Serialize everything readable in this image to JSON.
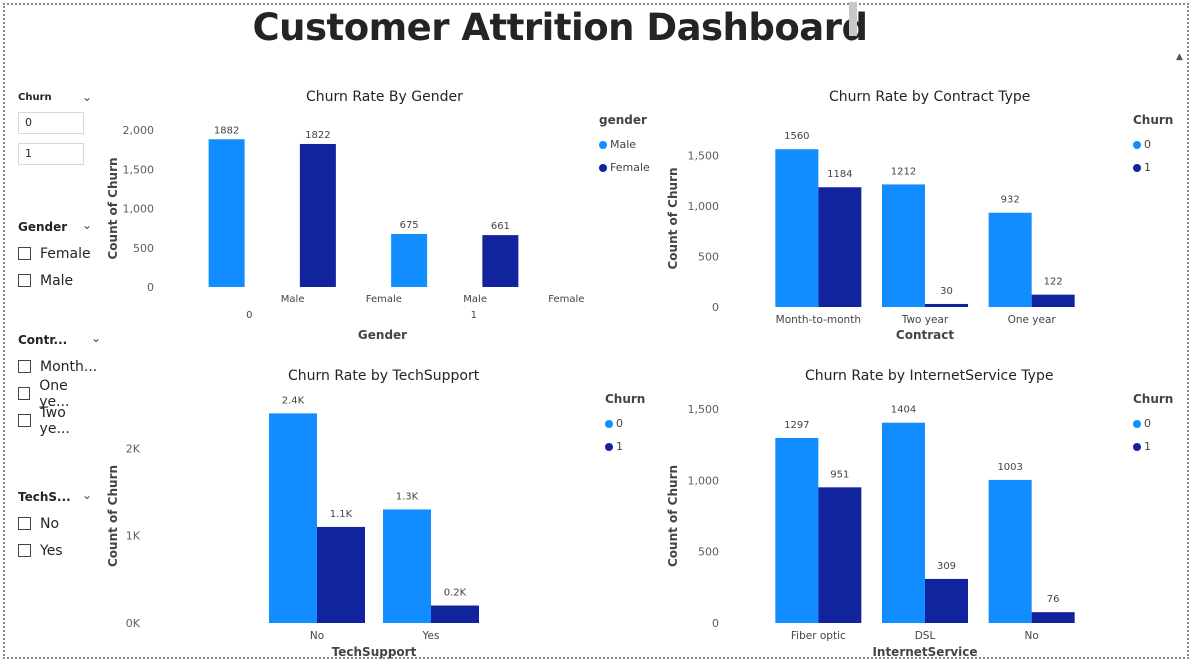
{
  "header": {
    "title": "Customer Attrition Dashboard"
  },
  "colors": {
    "primary": "#118DFF",
    "secondary": "#12239E"
  },
  "slicers": {
    "churn": {
      "title": "Churn",
      "items": [
        "0",
        "1"
      ]
    },
    "gender": {
      "title": "Gender",
      "items": [
        "Female",
        "Male"
      ]
    },
    "contract": {
      "title": "Contr...",
      "items": [
        "Month...",
        "One ye...",
        "Two ye..."
      ]
    },
    "techsupport": {
      "title": "TechS...",
      "items": [
        "No",
        "Yes"
      ]
    }
  },
  "chart_data": [
    {
      "id": "gender",
      "type": "bar",
      "title": "Churn Rate By Gender",
      "xlabel": "Gender",
      "ylabel": "Count of Churn",
      "legend": {
        "title": "gender",
        "items": [
          "Male",
          "Female"
        ],
        "position": "right"
      },
      "groups": [
        "0",
        "1"
      ],
      "categories": [
        "Male",
        "Female",
        "Male",
        "Female"
      ],
      "values": [
        1882,
        1822,
        675,
        661
      ],
      "value_labels": [
        "1882",
        "1822",
        "675",
        "661"
      ],
      "series_index": [
        0,
        1,
        0,
        1
      ],
      "ylim": [
        0,
        2000
      ],
      "yticks": [
        "0",
        "500",
        "1,000",
        "1,500",
        "2,000"
      ],
      "ytick_values": [
        0,
        500,
        1000,
        1500,
        2000
      ]
    },
    {
      "id": "contract",
      "type": "bar",
      "title": "Churn Rate by Contract Type",
      "xlabel": "Contract",
      "ylabel": "Count of Churn",
      "legend": {
        "title": "Churn",
        "items": [
          "0",
          "1"
        ],
        "position": "right"
      },
      "categories": [
        "Month-to-month",
        "Two year",
        "One year"
      ],
      "series": [
        {
          "name": "0",
          "values": [
            1560,
            1212,
            932
          ],
          "labels": [
            "1560",
            "1212",
            "932"
          ]
        },
        {
          "name": "1",
          "values": [
            1184,
            30,
            122
          ],
          "labels": [
            "1184",
            "30",
            "122"
          ]
        }
      ],
      "ylim": [
        0,
        1750
      ],
      "yticks": [
        "0",
        "500",
        "1,000",
        "1,500"
      ],
      "ytick_values": [
        0,
        500,
        1000,
        1500
      ]
    },
    {
      "id": "techsupport",
      "type": "bar",
      "title": "Churn Rate by TechSupport",
      "xlabel": "TechSupport",
      "ylabel": "Count of Churn",
      "legend": {
        "title": "Churn",
        "items": [
          "0",
          "1"
        ],
        "position": "right"
      },
      "categories": [
        "No",
        "Yes"
      ],
      "series": [
        {
          "name": "0",
          "values": [
            2400,
            1300
          ],
          "labels": [
            "2.4K",
            "1.3K"
          ]
        },
        {
          "name": "1",
          "values": [
            1100,
            200
          ],
          "labels": [
            "1.1K",
            "0.2K"
          ]
        }
      ],
      "ylim": [
        0,
        2450
      ],
      "yticks": [
        "0K",
        "1K",
        "2K"
      ],
      "ytick_values": [
        0,
        1000,
        2000
      ]
    },
    {
      "id": "internet",
      "type": "bar",
      "title": "Churn Rate by InternetService Type",
      "xlabel": "InternetService",
      "ylabel": "Count of Churn",
      "legend": {
        "title": "Churn",
        "items": [
          "0",
          "1"
        ],
        "position": "right"
      },
      "categories": [
        "Fiber optic",
        "DSL",
        "No"
      ],
      "series": [
        {
          "name": "0",
          "values": [
            1297,
            1404,
            1003
          ],
          "labels": [
            "1297",
            "1404",
            "1003"
          ]
        },
        {
          "name": "1",
          "values": [
            951,
            309,
            76
          ],
          "labels": [
            "951",
            "309",
            "76"
          ]
        }
      ],
      "ylim": [
        0,
        1500
      ],
      "yticks": [
        "0",
        "500",
        "1,000",
        "1,500"
      ],
      "ytick_values": [
        0,
        500,
        1000,
        1500
      ]
    }
  ]
}
